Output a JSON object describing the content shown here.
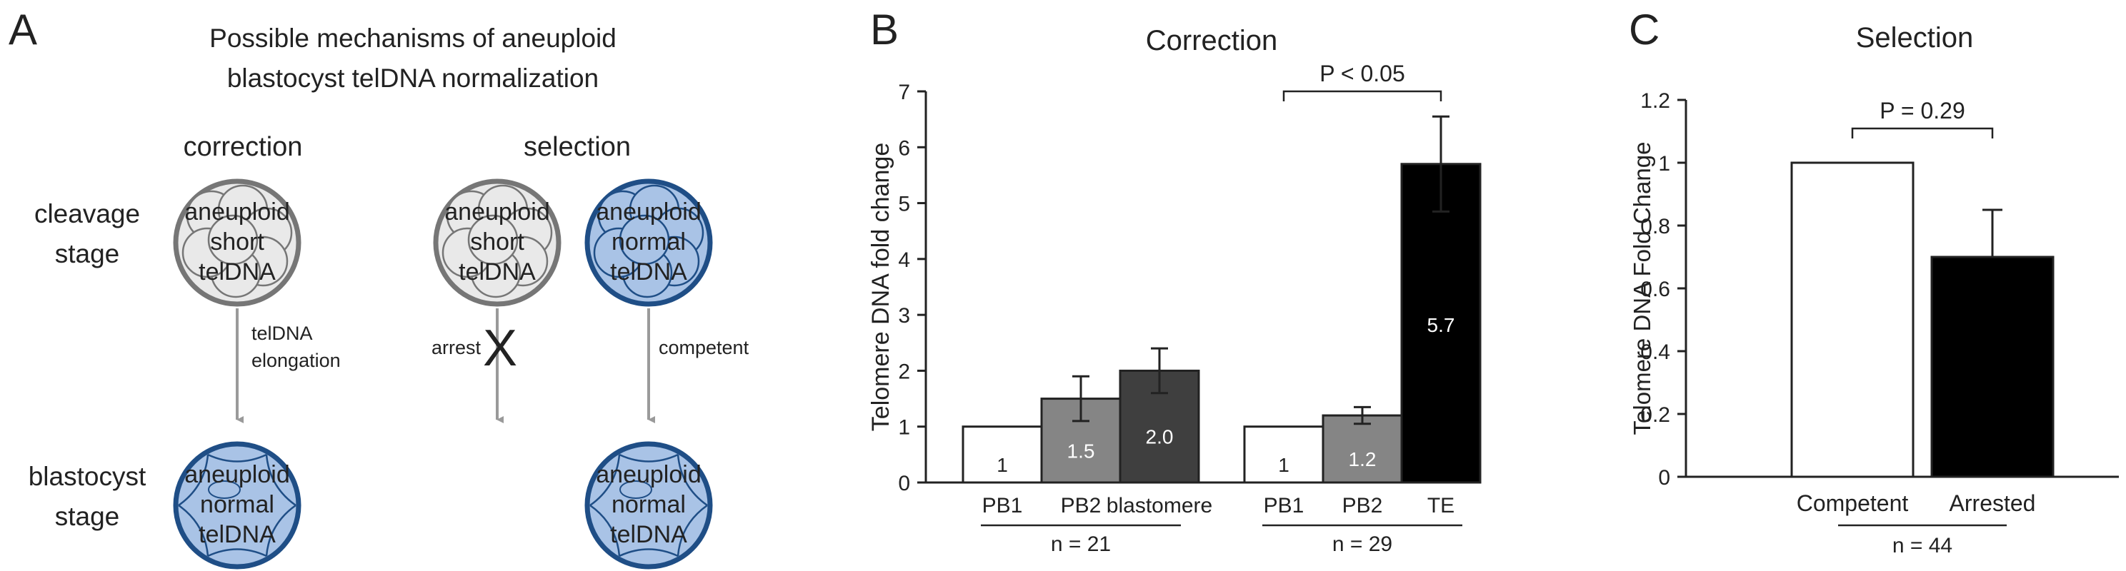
{
  "panels": {
    "a": {
      "letter": "A",
      "title_line1": "Possible mechanisms of aneuploid",
      "title_line2": "blastocyst telDNA normalization",
      "col_correction": "correction",
      "col_selection": "selection",
      "row_cleavage_line1": "cleavage",
      "row_cleavage_line2": "stage",
      "row_blastocyst_line1": "blastocyst",
      "row_blastocyst_line2": "stage",
      "cell_aneuploid_short": [
        "aneuploid",
        "short",
        "telDNA"
      ],
      "cell_aneuploid_normal": [
        "aneuploid",
        "normal",
        "telDNA"
      ],
      "arrow_correction_line1": "telDNA",
      "arrow_correction_line2": "elongation",
      "arrow_arrest": "arrest",
      "arrest_mark": "X",
      "arrow_competent": "competent",
      "colors": {
        "short_fill": "#e9e9e9",
        "short_stroke": "#767676",
        "normal_fill": "#a9c3e6",
        "normal_stroke": "#1f4e86",
        "arrow": "#9a9a9a"
      }
    },
    "b": {
      "letter": "B"
    },
    "c": {
      "letter": "C"
    }
  },
  "chart_data": [
    {
      "type": "bar",
      "title": "Correction",
      "ylabel": "Telomere DNA fold change",
      "ylim": [
        0,
        7
      ],
      "yticks": [
        0,
        1,
        2,
        3,
        4,
        5,
        6,
        7
      ],
      "groups": [
        {
          "n_label": "n = 21",
          "categories": [
            "PB1",
            "PB2",
            "blastomere"
          ],
          "values": [
            1,
            1.5,
            2.0
          ],
          "labels": [
            "1",
            "1.5",
            "2.0"
          ],
          "errors": [
            0,
            0.4,
            0.4
          ],
          "colors": [
            "#ffffff",
            "#858585",
            "#3f3f3f"
          ]
        },
        {
          "n_label": "n = 29",
          "categories": [
            "PB1",
            "PB2",
            "TE"
          ],
          "values": [
            1,
            1.2,
            5.7
          ],
          "labels": [
            "1",
            "1.2",
            "5.7"
          ],
          "errors": [
            0,
            0.15,
            0.85
          ],
          "colors": [
            "#ffffff",
            "#858585",
            "#000000"
          ]
        }
      ],
      "annotation": "P < 0.05"
    },
    {
      "type": "bar",
      "title": "Selection",
      "ylabel": "Telomere DNA Fold Change",
      "ylim": [
        0,
        1.2
      ],
      "yticks": [
        "0",
        "0.2",
        "0.4",
        "0.6",
        "0.8",
        "1",
        "1.2"
      ],
      "categories": [
        "Competent",
        "Arrested"
      ],
      "values": [
        1,
        0.7
      ],
      "errors": [
        0,
        0.15
      ],
      "colors": [
        "#ffffff",
        "#000000"
      ],
      "n_label": "n = 44",
      "annotation": "P = 0.29"
    }
  ]
}
